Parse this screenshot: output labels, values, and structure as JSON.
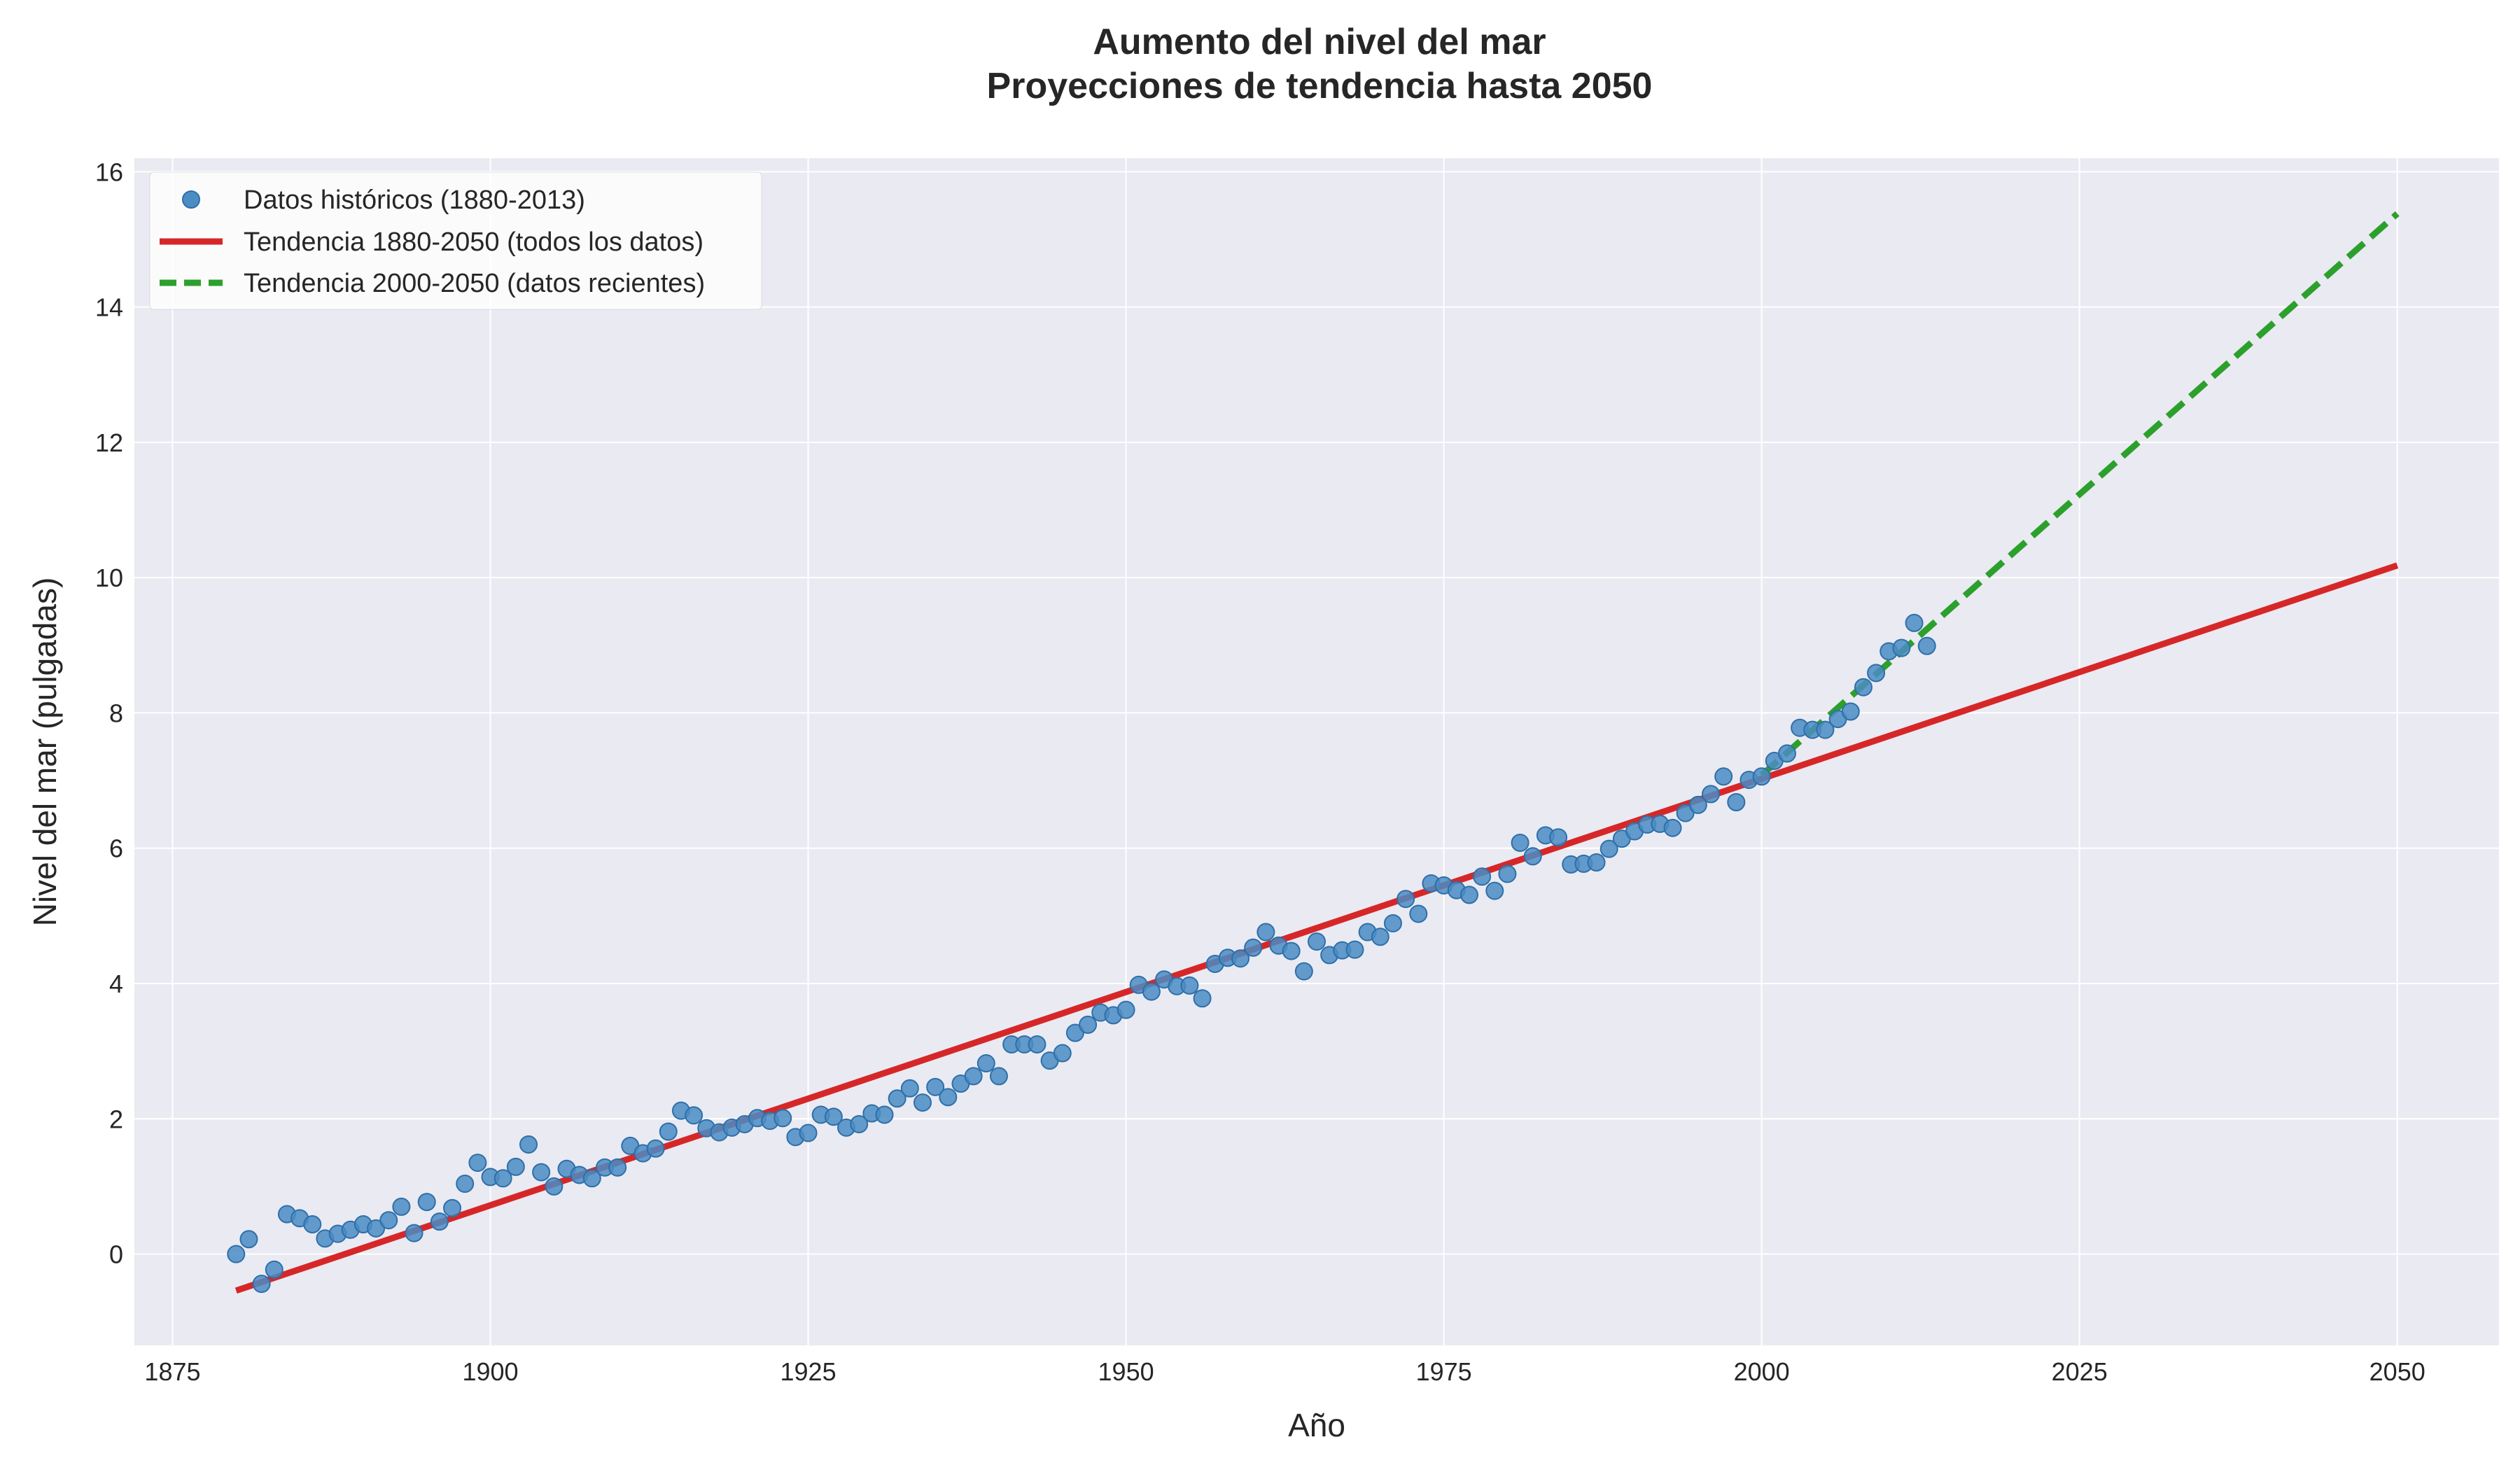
{
  "chart_data": {
    "type": "scatter",
    "title_line1": "Aumento del nivel del mar",
    "title_line2": "Proyecciones de tendencia hasta 2050",
    "xlabel": "Año",
    "ylabel": "Nivel del mar (pulgadas)",
    "xlim": [
      1872,
      2058
    ],
    "ylim": [
      -1.35,
      16.2
    ],
    "xticks": [
      1875,
      1900,
      1925,
      1950,
      1975,
      2000,
      2025,
      2050
    ],
    "yticks": [
      0,
      2,
      4,
      6,
      8,
      10,
      12,
      14,
      16
    ],
    "grid": true,
    "legend_position": "top-left",
    "colors": {
      "background": "#eaeaf2",
      "grid": "#ffffff",
      "scatter": "#4a8cc4",
      "scatter_edge": "#2f6fa8",
      "trend_all": "#d62728",
      "trend_recent": "#2ca02c"
    },
    "scatter": {
      "name": "Datos históricos (1880-2013)",
      "x": [
        1880,
        1881,
        1882,
        1883,
        1884,
        1885,
        1886,
        1887,
        1888,
        1889,
        1890,
        1891,
        1892,
        1893,
        1894,
        1895,
        1896,
        1897,
        1898,
        1899,
        1900,
        1901,
        1902,
        1903,
        1904,
        1905,
        1906,
        1907,
        1908,
        1909,
        1910,
        1911,
        1912,
        1913,
        1914,
        1915,
        1916,
        1917,
        1918,
        1919,
        1920,
        1921,
        1922,
        1923,
        1924,
        1925,
        1926,
        1927,
        1928,
        1929,
        1930,
        1931,
        1932,
        1933,
        1934,
        1935,
        1936,
        1937,
        1938,
        1939,
        1940,
        1941,
        1942,
        1943,
        1944,
        1945,
        1946,
        1947,
        1948,
        1949,
        1950,
        1951,
        1952,
        1953,
        1954,
        1955,
        1956,
        1957,
        1958,
        1959,
        1960,
        1961,
        1962,
        1963,
        1964,
        1965,
        1966,
        1967,
        1968,
        1969,
        1970,
        1971,
        1972,
        1973,
        1974,
        1975,
        1976,
        1977,
        1978,
        1979,
        1980,
        1981,
        1982,
        1983,
        1984,
        1985,
        1986,
        1987,
        1988,
        1989,
        1990,
        1991,
        1992,
        1993,
        1994,
        1995,
        1996,
        1997,
        1998,
        1999,
        2000,
        2001,
        2002,
        2003,
        2004,
        2005,
        2006,
        2007,
        2008,
        2009,
        2010,
        2011,
        2012,
        2013
      ],
      "y": [
        0.0,
        0.22,
        -0.44,
        -0.23,
        0.59,
        0.53,
        0.44,
        0.23,
        0.3,
        0.36,
        0.44,
        0.38,
        0.5,
        0.7,
        0.31,
        0.77,
        0.48,
        0.68,
        1.04,
        1.35,
        1.14,
        1.12,
        1.29,
        1.62,
        1.21,
        1.0,
        1.26,
        1.17,
        1.12,
        1.28,
        1.28,
        1.6,
        1.49,
        1.56,
        1.81,
        2.12,
        2.05,
        1.86,
        1.8,
        1.87,
        1.92,
        2.01,
        1.97,
        2.01,
        1.73,
        1.79,
        2.06,
        2.03,
        1.87,
        1.92,
        2.08,
        2.06,
        2.3,
        2.45,
        2.24,
        2.47,
        2.32,
        2.52,
        2.63,
        2.82,
        2.63,
        3.1,
        3.1,
        3.1,
        2.86,
        2.97,
        3.27,
        3.39,
        3.57,
        3.53,
        3.61,
        3.98,
        3.88,
        4.06,
        3.96,
        3.97,
        3.78,
        4.29,
        4.38,
        4.37,
        4.53,
        4.76,
        4.56,
        4.48,
        4.18,
        4.62,
        4.42,
        4.49,
        4.5,
        4.76,
        4.69,
        4.89,
        5.25,
        5.03,
        5.48,
        5.45,
        5.38,
        5.31,
        5.58,
        5.37,
        5.62,
        6.08,
        5.88,
        6.19,
        6.16,
        5.76,
        5.77,
        5.79,
        5.99,
        6.14,
        6.25,
        6.35,
        6.36,
        6.3,
        6.52,
        6.64,
        6.8,
        7.06,
        6.68,
        7.01,
        7.06,
        7.29,
        7.4,
        7.78,
        7.75,
        7.75,
        7.91,
        8.02,
        8.38,
        8.59,
        8.91,
        8.96,
        9.33,
        8.99
      ]
    },
    "lines": [
      {
        "name": "Tendencia 1880-2050 (todos los datos)",
        "style": "solid",
        "x": [
          1880,
          2050
        ],
        "y": [
          -0.54,
          10.18
        ]
      },
      {
        "name": "Tendencia 2000-2050 (datos recientes)",
        "style": "dashed",
        "x": [
          2000,
          2050
        ],
        "y": [
          7.08,
          15.38
        ]
      }
    ]
  }
}
